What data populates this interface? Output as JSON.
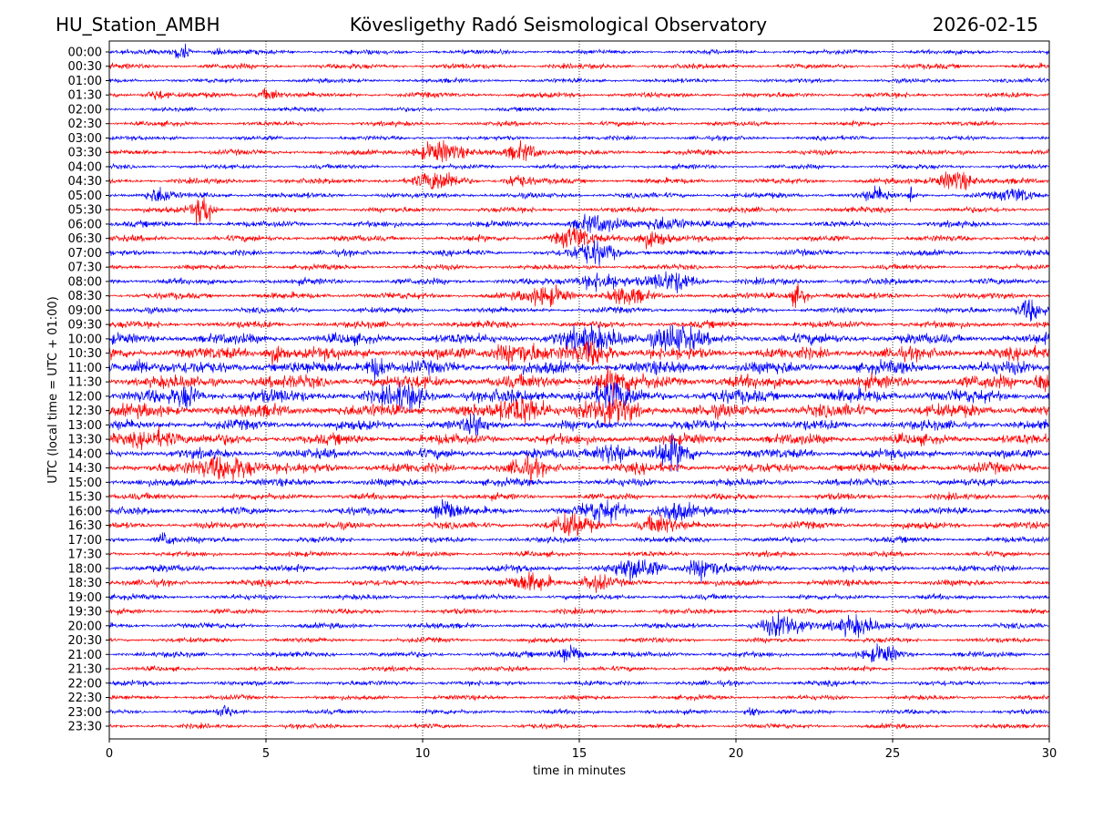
{
  "header": {
    "station": "HU_Station_AMBH",
    "observatory": "Kövesligethy Radó Seismological Observatory",
    "date": "2026-02-15"
  },
  "chart_data": {
    "type": "line",
    "title": "Kövesligethy Radó Seismological Observatory",
    "xlabel": "time in minutes",
    "ylabel": "UTC (local time = UTC + 01:00)",
    "xlim": [
      0,
      30
    ],
    "xticks": [
      "0",
      "5",
      "10",
      "15",
      "20",
      "25",
      "30"
    ],
    "grid": "vertical dotted at each 5 minutes",
    "colors": [
      "#0000ff",
      "#ff0000"
    ],
    "rows": [
      "00:00",
      "00:30",
      "01:00",
      "01:30",
      "02:00",
      "02:30",
      "03:00",
      "03:30",
      "04:00",
      "04:30",
      "05:00",
      "05:30",
      "06:00",
      "06:30",
      "07:00",
      "07:30",
      "08:00",
      "08:30",
      "09:00",
      "09:30",
      "10:00",
      "10:30",
      "11:00",
      "11:30",
      "12:00",
      "12:30",
      "13:00",
      "13:30",
      "14:00",
      "14:30",
      "15:00",
      "15:30",
      "16:00",
      "16:30",
      "17:00",
      "17:30",
      "18:00",
      "18:30",
      "19:00",
      "19:30",
      "20:00",
      "20:30",
      "21:00",
      "21:30",
      "22:00",
      "22:30",
      "23:00",
      "23:30"
    ],
    "noise_level": [
      1.6,
      1.8,
      1.5,
      1.8,
      1.4,
      1.6,
      1.5,
      1.8,
      1.6,
      1.9,
      1.9,
      1.9,
      2.1,
      2.1,
      2.0,
      1.8,
      2.2,
      2.2,
      2.0,
      2.4,
      3.6,
      4.2,
      4.4,
      4.6,
      4.6,
      4.6,
      3.4,
      3.6,
      3.3,
      3.6,
      2.6,
      2.2,
      2.6,
      2.4,
      2.0,
      1.8,
      2.4,
      2.2,
      1.8,
      1.8,
      1.9,
      1.7,
      1.9,
      1.6,
      1.8,
      1.6,
      1.6,
      1.6
    ],
    "events": {
      "0": [
        [
          2.3,
          2.5,
          0.4
        ],
        [
          3.5,
          2,
          0.2
        ]
      ],
      "3": [
        [
          5.1,
          2,
          0.5
        ],
        [
          1.5,
          1.5,
          0.5
        ]
      ],
      "7": [
        [
          10.5,
          3.5,
          1
        ],
        [
          13.2,
          3,
          0.8
        ]
      ],
      "9": [
        [
          10.5,
          3,
          1
        ],
        [
          13,
          2,
          0.6
        ],
        [
          27,
          3.5,
          0.8
        ]
      ],
      "10": [
        [
          1.6,
          2.5,
          0.6
        ],
        [
          25.6,
          4,
          0.1
        ],
        [
          24.5,
          2,
          0.6
        ],
        [
          29,
          2,
          0.8
        ]
      ],
      "11": [
        [
          3,
          5,
          0.5
        ]
      ],
      "12": [
        [
          15.5,
          2.5,
          1
        ],
        [
          17.8,
          2.5,
          1
        ]
      ],
      "13": [
        [
          14.8,
          3.5,
          0.8
        ],
        [
          17.3,
          3,
          0.8
        ]
      ],
      "14": [
        [
          15.5,
          3.5,
          1
        ]
      ],
      "16": [
        [
          15.7,
          3,
          1
        ],
        [
          18,
          3,
          1
        ]
      ],
      "17": [
        [
          14,
          3,
          1
        ],
        [
          16.5,
          2.5,
          0.8
        ],
        [
          22,
          3.5,
          0.4
        ]
      ],
      "18": [
        [
          29.4,
          4,
          0.6
        ]
      ],
      "20": [
        [
          15.5,
          3,
          1.5
        ],
        [
          18,
          4,
          1
        ]
      ],
      "21": [
        [
          13,
          3.5,
          1
        ],
        [
          15.5,
          3.5,
          0.8
        ],
        [
          5.3,
          3,
          0.5
        ]
      ],
      "22": [
        [
          8.5,
          3.5,
          0.5
        ],
        [
          1,
          2.5,
          0.5
        ]
      ],
      "23": [
        [
          16,
          3,
          1
        ],
        [
          29.8,
          4,
          0.3
        ]
      ],
      "24": [
        [
          9.5,
          3,
          0.8
        ],
        [
          16,
          3,
          1
        ],
        [
          2.5,
          3,
          0.5
        ]
      ],
      "25": [
        [
          13.3,
          4,
          1
        ],
        [
          16,
          3.5,
          1
        ]
      ],
      "26": [
        [
          11.7,
          3,
          0.4
        ]
      ],
      "27": [
        [
          1.5,
          3,
          1
        ]
      ],
      "28": [
        [
          16,
          3.5,
          0.8
        ],
        [
          18,
          4,
          0.8
        ]
      ],
      "29": [
        [
          3.8,
          4,
          1.2
        ],
        [
          13.3,
          2.5,
          0.6
        ]
      ],
      "32": [
        [
          10.7,
          4,
          0.6
        ],
        [
          15.8,
          3,
          1
        ],
        [
          18,
          3,
          0.8
        ]
      ],
      "33": [
        [
          14.8,
          3.5,
          0.8
        ],
        [
          17.5,
          3,
          0.8
        ]
      ],
      "34": [
        [
          1.8,
          2.5,
          0.4
        ]
      ],
      "36": [
        [
          16.8,
          3.5,
          1
        ],
        [
          19,
          3.5,
          0.8
        ]
      ],
      "37": [
        [
          13.5,
          3,
          1
        ],
        [
          15.5,
          2.5,
          0.6
        ]
      ],
      "40": [
        [
          21.5,
          3.5,
          1
        ],
        [
          23.8,
          3.5,
          1
        ]
      ],
      "42": [
        [
          14.7,
          3.5,
          0.6
        ],
        [
          24.7,
          2.5,
          0.8
        ]
      ],
      "46": [
        [
          3.7,
          2,
          0.3
        ],
        [
          20.5,
          2,
          0.3
        ]
      ]
    }
  }
}
